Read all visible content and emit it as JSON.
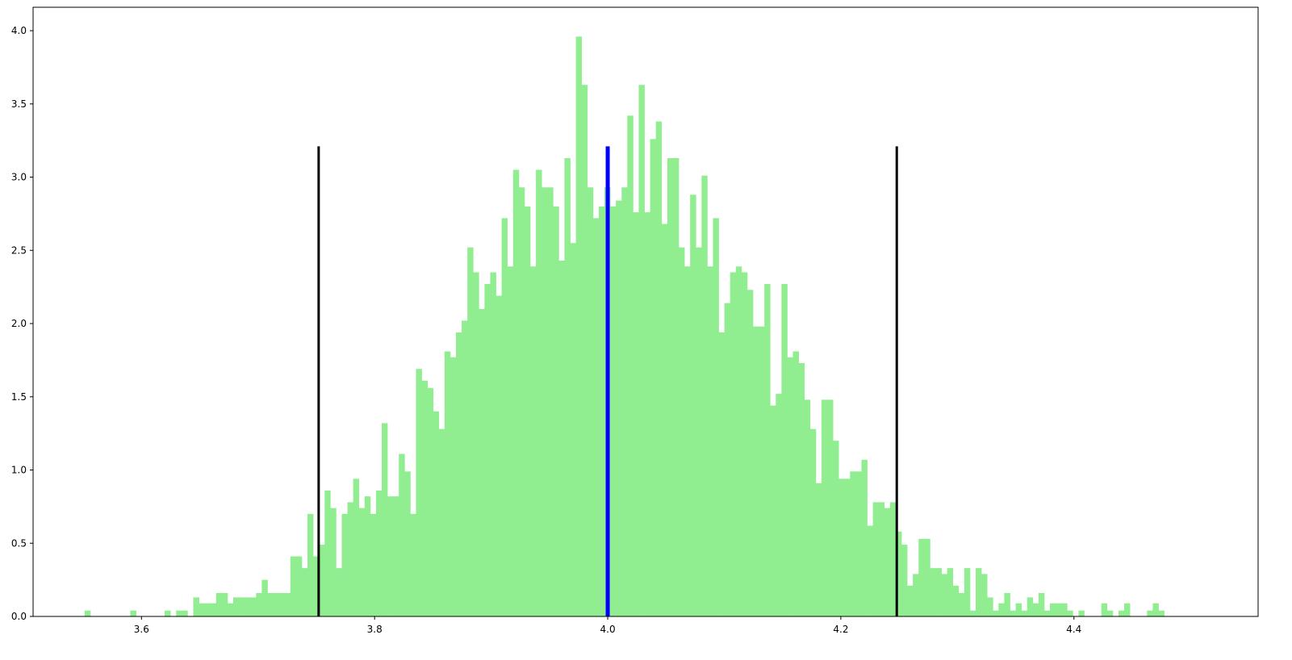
{
  "chart_data": {
    "type": "bar",
    "histogram": true,
    "title": "",
    "xlabel": "",
    "ylabel": "",
    "xlim": [
      3.507,
      4.558
    ],
    "ylim": [
      0,
      4.16
    ],
    "grid": false,
    "xticks": [
      "3.6",
      "3.8",
      "4.0",
      "4.2",
      "4.4"
    ],
    "yticks": [
      "0.0",
      "0.5",
      "1.0",
      "1.5",
      "2.0",
      "2.5",
      "3.0",
      "3.5",
      "4.0"
    ],
    "bin_width": 0.00491,
    "bins_x_start": [
      3.5512,
      3.5561,
      3.561,
      3.5659,
      3.5708,
      3.5757,
      3.5806,
      3.5855,
      3.5904,
      3.5953,
      3.6003,
      3.6052,
      3.6101,
      3.615,
      3.6199,
      3.6248,
      3.6297,
      3.6346,
      3.6395,
      3.6444,
      3.6493,
      3.6542,
      3.6591,
      3.664,
      3.6689,
      3.6738,
      3.6787,
      3.6836,
      3.6885,
      3.6934,
      3.6983,
      3.7032,
      3.7081,
      3.713,
      3.7179,
      3.7228,
      3.7277,
      3.7326,
      3.7375,
      3.7424,
      3.7473,
      3.7522,
      3.7571,
      3.762,
      3.7669,
      3.7718,
      3.7767,
      3.7816,
      3.7865,
      3.7914,
      3.7963,
      3.8012,
      3.8061,
      3.811,
      3.8159,
      3.8208,
      3.8257,
      3.8306,
      3.8355,
      3.8404,
      3.8453,
      3.8502,
      3.8551,
      3.86,
      3.8649,
      3.8698,
      3.8747,
      3.8796,
      3.8845,
      3.8894,
      3.8943,
      3.8992,
      3.9041,
      3.909,
      3.9139,
      3.9188,
      3.9237,
      3.9286,
      3.9335,
      3.9384,
      3.9433,
      3.9482,
      3.9531,
      3.958,
      3.9629,
      3.9678,
      3.9727,
      3.9776,
      3.9825,
      3.9874,
      3.9923,
      3.9972,
      4.0021,
      4.007,
      4.0119,
      4.0168,
      4.0217,
      4.0266,
      4.0315,
      4.0364,
      4.0413,
      4.0462,
      4.0511,
      4.056,
      4.0609,
      4.0658,
      4.0707,
      4.0756,
      4.0805,
      4.0854,
      4.0903,
      4.0952,
      4.1001,
      4.105,
      4.1099,
      4.1148,
      4.1197,
      4.1246,
      4.1295,
      4.1344,
      4.1393,
      4.1442,
      4.1491,
      4.154,
      4.1589,
      4.1638,
      4.1687,
      4.1736,
      4.1785,
      4.1834,
      4.1883,
      4.1932,
      4.1981,
      4.203,
      4.2079,
      4.2128,
      4.2177,
      4.2226,
      4.2275,
      4.2324,
      4.2373,
      4.2422,
      4.2471,
      4.252,
      4.2569,
      4.2618,
      4.2667,
      4.2716,
      4.2765,
      4.2814,
      4.2863,
      4.2912,
      4.2961,
      4.301,
      4.3059,
      4.3108,
      4.3157,
      4.3206,
      4.3255,
      4.3304,
      4.3353,
      4.3402,
      4.3451,
      4.35,
      4.3549,
      4.3598,
      4.3647,
      4.3696,
      4.3745,
      4.3794,
      4.3843,
      4.3892,
      4.3941,
      4.399,
      4.4039,
      4.4088,
      4.4137,
      4.4186,
      4.4235,
      4.4284,
      4.4333,
      4.4382,
      4.4431,
      4.448,
      4.4529,
      4.4578,
      4.4627,
      4.4676,
      4.4725,
      4.4774,
      4.4823,
      4.4872,
      4.4921,
      4.497,
      4.5019,
      4.5068,
      4.5117,
      4.5166,
      4.5215
    ],
    "values": [
      0.04,
      0,
      0,
      0,
      0,
      0,
      0,
      0,
      0.04,
      0,
      0,
      0,
      0,
      0,
      0.04,
      0,
      0.04,
      0.04,
      0,
      0.13,
      0.09,
      0.09,
      0.09,
      0.16,
      0.16,
      0.09,
      0.13,
      0.13,
      0.13,
      0.13,
      0.16,
      0.25,
      0.16,
      0.16,
      0.16,
      0.16,
      0.41,
      0.41,
      0.33,
      0.7,
      0.41,
      0.49,
      0.86,
      0.74,
      0.33,
      0.7,
      0.78,
      0.94,
      0.74,
      0.82,
      0.7,
      0.86,
      1.32,
      0.82,
      0.82,
      1.11,
      0.99,
      0.7,
      1.69,
      1.61,
      1.56,
      1.4,
      1.28,
      1.81,
      1.77,
      1.94,
      2.02,
      2.52,
      2.35,
      2.1,
      2.27,
      2.35,
      2.19,
      2.72,
      2.39,
      3.05,
      2.93,
      2.8,
      2.39,
      3.05,
      2.93,
      2.93,
      2.8,
      2.43,
      3.13,
      2.55,
      3.96,
      3.63,
      2.93,
      2.72,
      2.8,
      2.93,
      2.8,
      2.84,
      2.93,
      3.42,
      2.76,
      3.63,
      2.76,
      3.26,
      3.38,
      2.68,
      3.13,
      3.13,
      2.52,
      2.39,
      2.88,
      2.52,
      3.01,
      2.39,
      2.72,
      1.94,
      2.14,
      2.35,
      2.39,
      2.35,
      2.23,
      1.98,
      1.98,
      2.27,
      1.44,
      1.52,
      2.27,
      1.77,
      1.81,
      1.73,
      1.48,
      1.28,
      0.91,
      1.48,
      1.48,
      1.2,
      0.94,
      0.94,
      0.99,
      0.99,
      1.07,
      0.62,
      0.78,
      0.78,
      0.74,
      0.78,
      0.58,
      0.49,
      0.21,
      0.29,
      0.53,
      0.53,
      0.33,
      0.33,
      0.29,
      0.33,
      0.21,
      0.16,
      0.33,
      0.04,
      0.33,
      0.29,
      0.13,
      0.04,
      0.09,
      0.16,
      0.04,
      0.09,
      0.04,
      0.13,
      0.09,
      0.16,
      0.04,
      0.09,
      0.09,
      0.09,
      0.04,
      0,
      0.04,
      0,
      0,
      0,
      0.09,
      0.04,
      0,
      0.04,
      0.09,
      0,
      0,
      0,
      0.04,
      0.09,
      0.04,
      0,
      0,
      0,
      0,
      0,
      0,
      0,
      0,
      0,
      0,
      0.04
    ],
    "vertical_lines": [
      {
        "x": 3.752,
        "ymax": 3.21,
        "color": "#000000"
      },
      {
        "x": 4.0,
        "ymax": 3.21,
        "color": "#0000ff"
      },
      {
        "x": 4.248,
        "ymax": 3.21,
        "color": "#000000"
      }
    ],
    "colors": {
      "bars": "#90ee90",
      "axes": "#000000"
    }
  }
}
